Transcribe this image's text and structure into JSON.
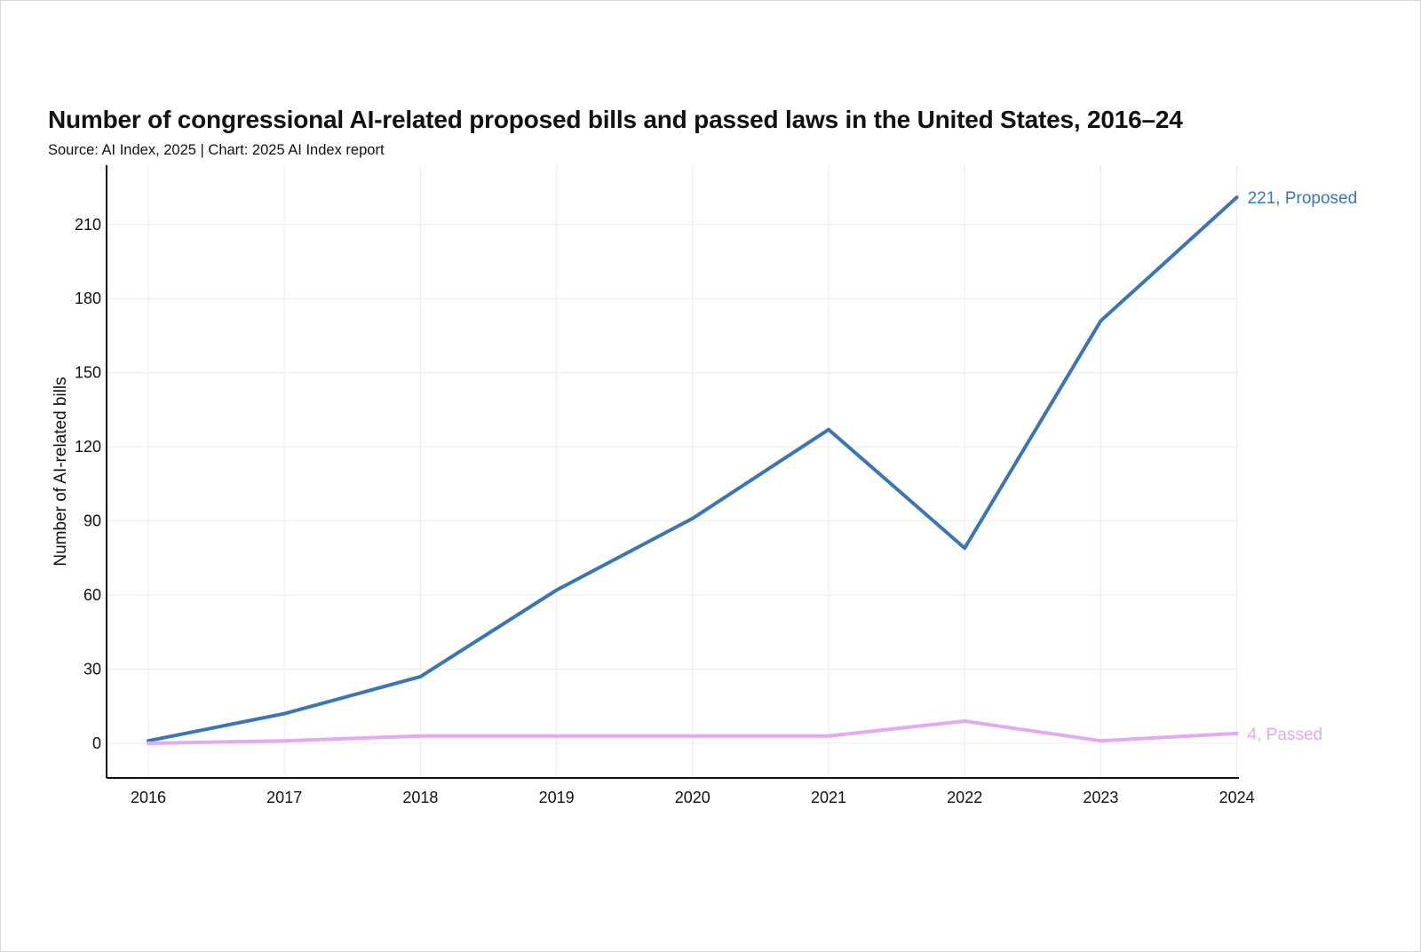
{
  "chart_data": {
    "type": "line",
    "title": "Number of congressional AI-related proposed bills and passed laws in the United States, 2016–24",
    "subtitle": "Source: AI Index, 2025 | Chart: 2025 AI Index report",
    "xlabel": "",
    "ylabel": "Number of AI-related bills",
    "x": [
      "2016",
      "2017",
      "2018",
      "2019",
      "2020",
      "2021",
      "2022",
      "2023",
      "2024"
    ],
    "ylim": [
      -14,
      235
    ],
    "yticks": [
      "0",
      "30",
      "60",
      "90",
      "120",
      "150",
      "180",
      "210"
    ],
    "grid": true,
    "series": [
      {
        "name": "Proposed",
        "color": "#3a76b5",
        "values": [
          1,
          12,
          27,
          62,
          91,
          127,
          79,
          171,
          221
        ],
        "end_label": "221, Proposed"
      },
      {
        "name": "Passed",
        "color": "#e2aaf4",
        "values": [
          0,
          1,
          3,
          3,
          3,
          3,
          9,
          1,
          4
        ],
        "end_label": "4, Passed"
      }
    ]
  }
}
